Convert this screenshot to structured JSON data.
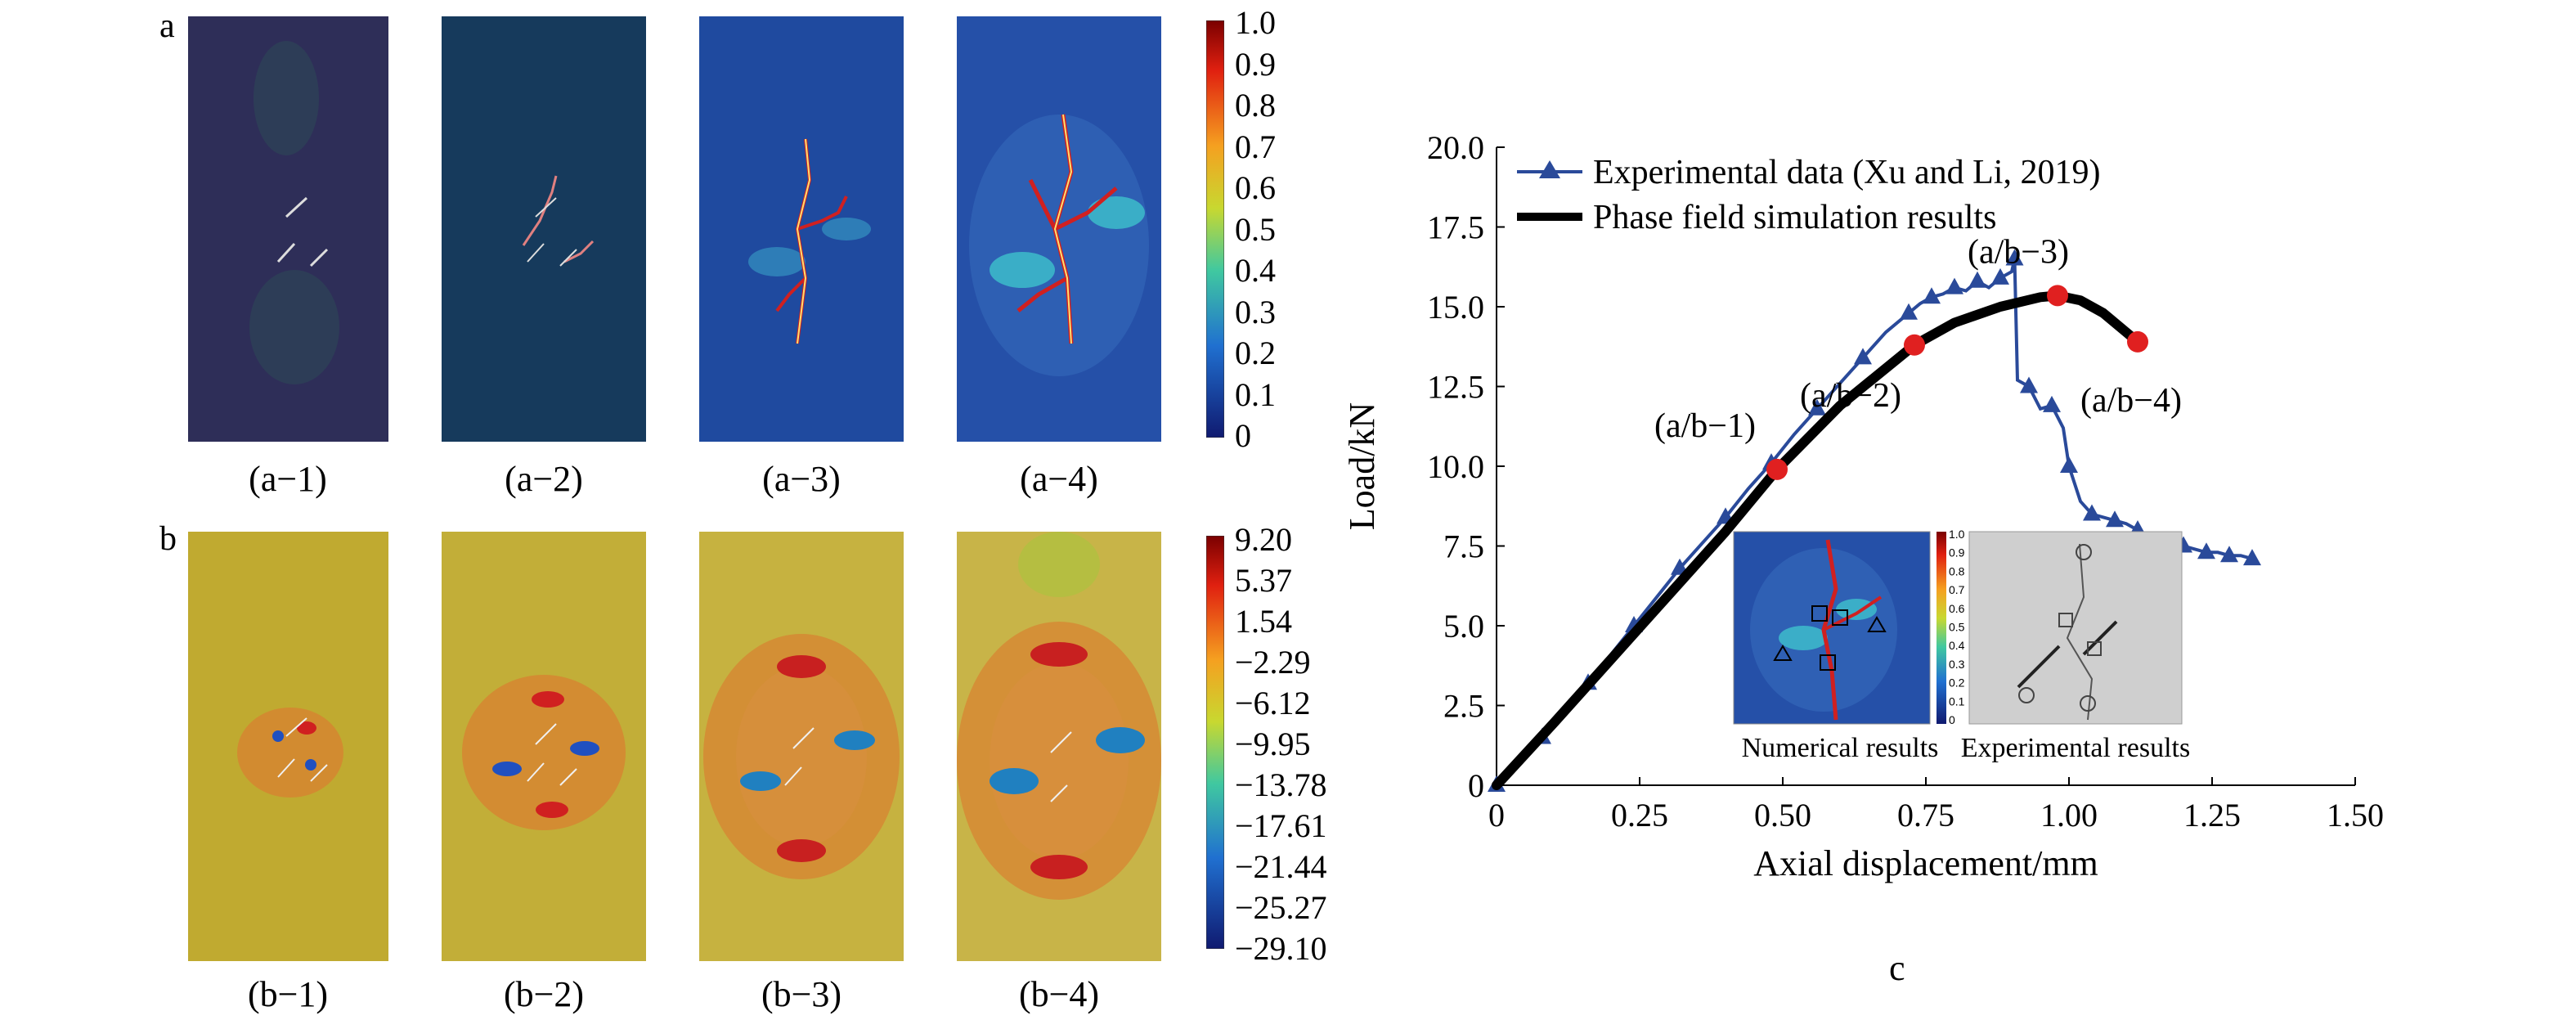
{
  "figure": {
    "panel_a_letter": "a",
    "panel_b_letter": "b",
    "panel_c_letter": "c",
    "a_captions": [
      "(a−1)",
      "(a−2)",
      "(a−3)",
      "(a−4)"
    ],
    "b_captions": [
      "(b−1)",
      "(b−2)",
      "(b−3)",
      "(b−4)"
    ],
    "colorbar_a_ticks": [
      "1.0",
      "0.9",
      "0.8",
      "0.7",
      "0.6",
      "0.5",
      "0.4",
      "0.3",
      "0.2",
      "0.1",
      "0"
    ],
    "colorbar_b_ticks": [
      "9.20",
      "5.37",
      "1.54",
      "−2.29",
      "−6.12",
      "−9.95",
      "−13.78",
      "−17.61",
      "−21.44",
      "−25.27",
      "−29.10"
    ],
    "inset_colorbar_ticks": [
      "1.0",
      "0.9",
      "0.8",
      "0.7",
      "0.6",
      "0.5",
      "0.4",
      "0.3",
      "0.2",
      "0.1",
      "0"
    ],
    "inset_numerical_label": "Numerical results",
    "inset_experimental_label": "Experimental results"
  },
  "colors": {
    "a_background": [
      "#2e2e58",
      "#163a5c",
      "#1f4a9f",
      "#2550a8"
    ],
    "b_background": "#c0aa30",
    "experimental_line": "#2a4a9a",
    "simulation_line": "#000000",
    "marker_point": "#e02020"
  },
  "chart_data": {
    "type": "line",
    "xlabel": "Axial displacement/mm",
    "ylabel": "Load/kN",
    "xlim": [
      0,
      1.5
    ],
    "ylim": [
      0,
      20
    ],
    "x_ticks": [
      "0",
      "0.25",
      "0.50",
      "0.75",
      "1.00",
      "1.25",
      "1.50"
    ],
    "y_ticks": [
      "0",
      "2.5",
      "5.0",
      "7.5",
      "10.0",
      "12.5",
      "15.0",
      "17.5",
      "20.0"
    ],
    "legend_position": "top-left",
    "series": [
      {
        "name": "Experimental data (Xu and Li, 2019)",
        "style": "line-triangle",
        "x": [
          0,
          0.04,
          0.08,
          0.12,
          0.16,
          0.2,
          0.24,
          0.28,
          0.32,
          0.36,
          0.4,
          0.44,
          0.48,
          0.52,
          0.56,
          0.6,
          0.64,
          0.68,
          0.72,
          0.74,
          0.76,
          0.78,
          0.8,
          0.82,
          0.84,
          0.86,
          0.88,
          0.9,
          0.905,
          0.91,
          0.93,
          0.95,
          0.97,
          0.99,
          1.0,
          1.02,
          1.04,
          1.06,
          1.08,
          1.1,
          1.12,
          1.14,
          1.16,
          1.18,
          1.2,
          1.22,
          1.24,
          1.26,
          1.28,
          1.3,
          1.32
        ],
        "y": [
          0,
          0.7,
          1.5,
          2.4,
          3.2,
          4.1,
          5.0,
          5.9,
          6.8,
          7.6,
          8.4,
          9.3,
          10.1,
          11.0,
          11.8,
          12.6,
          13.4,
          14.2,
          14.8,
          15.1,
          15.3,
          15.4,
          15.6,
          15.5,
          15.8,
          15.6,
          15.9,
          16.1,
          16.5,
          12.7,
          12.5,
          11.8,
          11.9,
          11.2,
          10.0,
          8.9,
          8.5,
          8.4,
          8.3,
          8.2,
          8.0,
          7.8,
          7.6,
          7.5,
          7.5,
          7.4,
          7.3,
          7.3,
          7.2,
          7.2,
          7.1
        ]
      },
      {
        "name": "Phase field simulation results",
        "style": "thick-line",
        "x": [
          0,
          0.1,
          0.2,
          0.3,
          0.4,
          0.49,
          0.6,
          0.73,
          0.8,
          0.88,
          0.95,
          0.98,
          1.02,
          1.06,
          1.1,
          1.12
        ],
        "y": [
          0,
          1.95,
          3.95,
          5.95,
          7.95,
          9.9,
          11.9,
          13.8,
          14.5,
          15.0,
          15.3,
          15.35,
          15.2,
          14.8,
          14.2,
          13.9
        ]
      }
    ],
    "annotations": [
      {
        "label": "(a/b−1)",
        "x": 0.49,
        "y": 9.9
      },
      {
        "label": "(a/b−2)",
        "x": 0.73,
        "y": 13.8
      },
      {
        "label": "(a/b−3)",
        "x": 0.98,
        "y": 15.35
      },
      {
        "label": "(a/b−4)",
        "x": 1.12,
        "y": 13.9
      }
    ]
  }
}
